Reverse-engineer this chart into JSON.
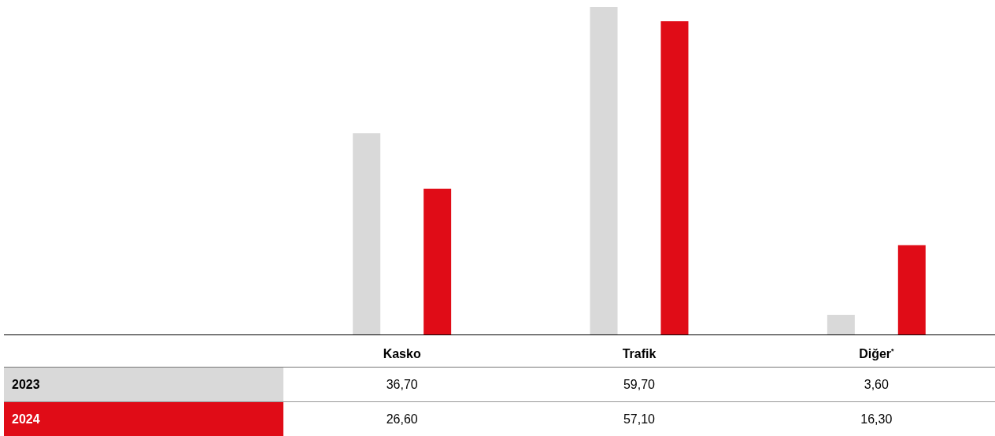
{
  "chart_data": {
    "type": "bar",
    "categories": [
      "Kasko",
      "Trafik",
      "Diğer$^{*}$"
    ],
    "series": [
      {
        "name": "2023",
        "color": "#d9d9d9",
        "values": [
          36.7,
          59.7,
          3.6
        ],
        "value_labels": [
          "36,70",
          "59,70",
          "3,60"
        ]
      },
      {
        "name": "2024",
        "color": "#e00c17",
        "values": [
          26.6,
          57.1,
          16.3
        ],
        "value_labels": [
          "26,60",
          "57,10",
          "16,30"
        ]
      }
    ],
    "legend": false,
    "grid": false
  }
}
